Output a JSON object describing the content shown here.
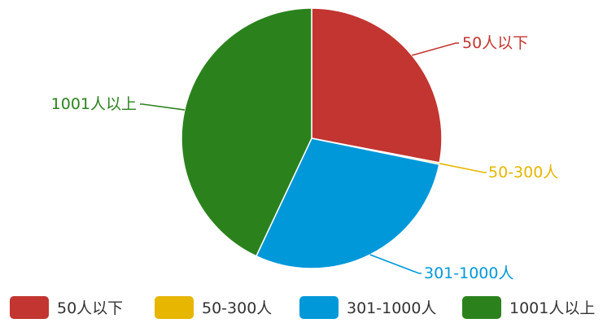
{
  "chart_data": {
    "type": "pie",
    "title": "",
    "categories": [
      "50人以下",
      "50-300人",
      "301-1000人",
      "1001人以上"
    ],
    "values": [
      28,
      0.2,
      28.8,
      43
    ],
    "colors": [
      "#c23531",
      "#e6b600",
      "#0098d9",
      "#2b821d"
    ],
    "legend": {
      "position": "bottom",
      "items": [
        "50人以下",
        "50-300人",
        "301-1000人",
        "1001人以上"
      ]
    }
  }
}
